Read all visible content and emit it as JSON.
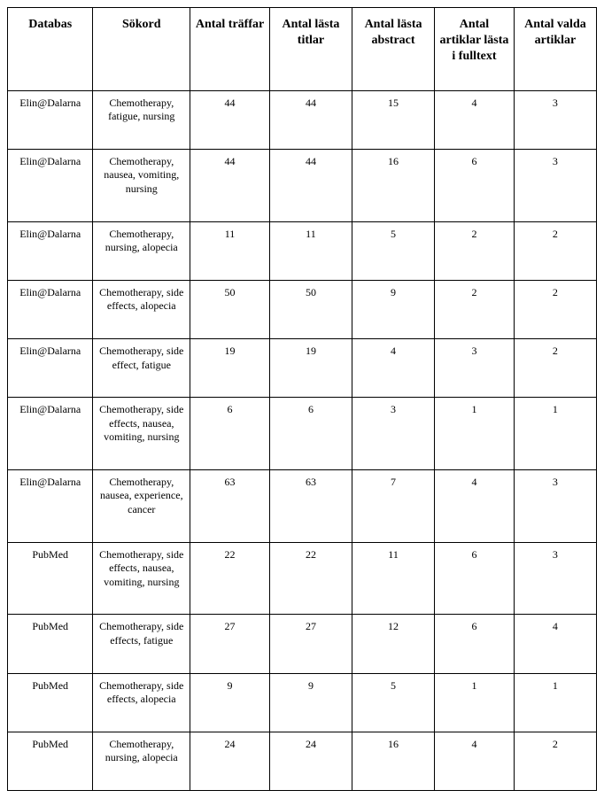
{
  "table": {
    "columns": [
      "Databas",
      "Sökord",
      "Antal träffar",
      "Antal lästa titlar",
      "Antal lästa abstract",
      "Antal artiklar lästa i fulltext",
      "Antal valda artiklar"
    ],
    "rows": [
      {
        "db": "Elin@Dalarna",
        "keywords": "Chemotherapy, fatigue, nursing",
        "hits": "44",
        "titles": "44",
        "abstracts": "15",
        "fulltext": "4",
        "selected": "3"
      },
      {
        "db": "Elin@Dalarna",
        "keywords": "Chemotherapy, nausea, vomiting, nursing",
        "hits": "44",
        "titles": "44",
        "abstracts": "16",
        "fulltext": "6",
        "selected": "3"
      },
      {
        "db": "Elin@Dalarna",
        "keywords": "Chemotherapy, nursing, alopecia",
        "hits": "11",
        "titles": "11",
        "abstracts": "5",
        "fulltext": "2",
        "selected": "2"
      },
      {
        "db": "Elin@Dalarna",
        "keywords": "Chemotherapy, side effects, alopecia",
        "hits": "50",
        "titles": "50",
        "abstracts": "9",
        "fulltext": "2",
        "selected": "2"
      },
      {
        "db": "Elin@Dalarna",
        "keywords": "Chemotherapy, side effect, fatigue",
        "hits": "19",
        "titles": "19",
        "abstracts": "4",
        "fulltext": "3",
        "selected": "2"
      },
      {
        "db": "Elin@Dalarna",
        "keywords": "Chemotherapy, side effects, nausea, vomiting, nursing",
        "hits": "6",
        "titles": "6",
        "abstracts": "3",
        "fulltext": "1",
        "selected": "1"
      },
      {
        "db": "Elin@Dalarna",
        "keywords": "Chemotherapy, nausea, experience, cancer",
        "hits": "63",
        "titles": "63",
        "abstracts": "7",
        "fulltext": "4",
        "selected": "3"
      },
      {
        "db": "PubMed",
        "keywords": "Chemotherapy, side effects, nausea, vomiting, nursing",
        "hits": "22",
        "titles": "22",
        "abstracts": "11",
        "fulltext": "6",
        "selected": "3"
      },
      {
        "db": "PubMed",
        "keywords": "Chemotherapy, side effects, fatigue",
        "hits": "27",
        "titles": "27",
        "abstracts": "12",
        "fulltext": "6",
        "selected": "4"
      },
      {
        "db": "PubMed",
        "keywords": "Chemotherapy, side effects, alopecia",
        "hits": "9",
        "titles": "9",
        "abstracts": "5",
        "fulltext": "1",
        "selected": "1"
      },
      {
        "db": "PubMed",
        "keywords": "Chemotherapy, nursing, alopecia",
        "hits": "24",
        "titles": "24",
        "abstracts": "16",
        "fulltext": "4",
        "selected": "2"
      }
    ],
    "border_color": "#000000",
    "background_color": "#ffffff",
    "header_fontsize": 14,
    "cell_fontsize": 12
  }
}
